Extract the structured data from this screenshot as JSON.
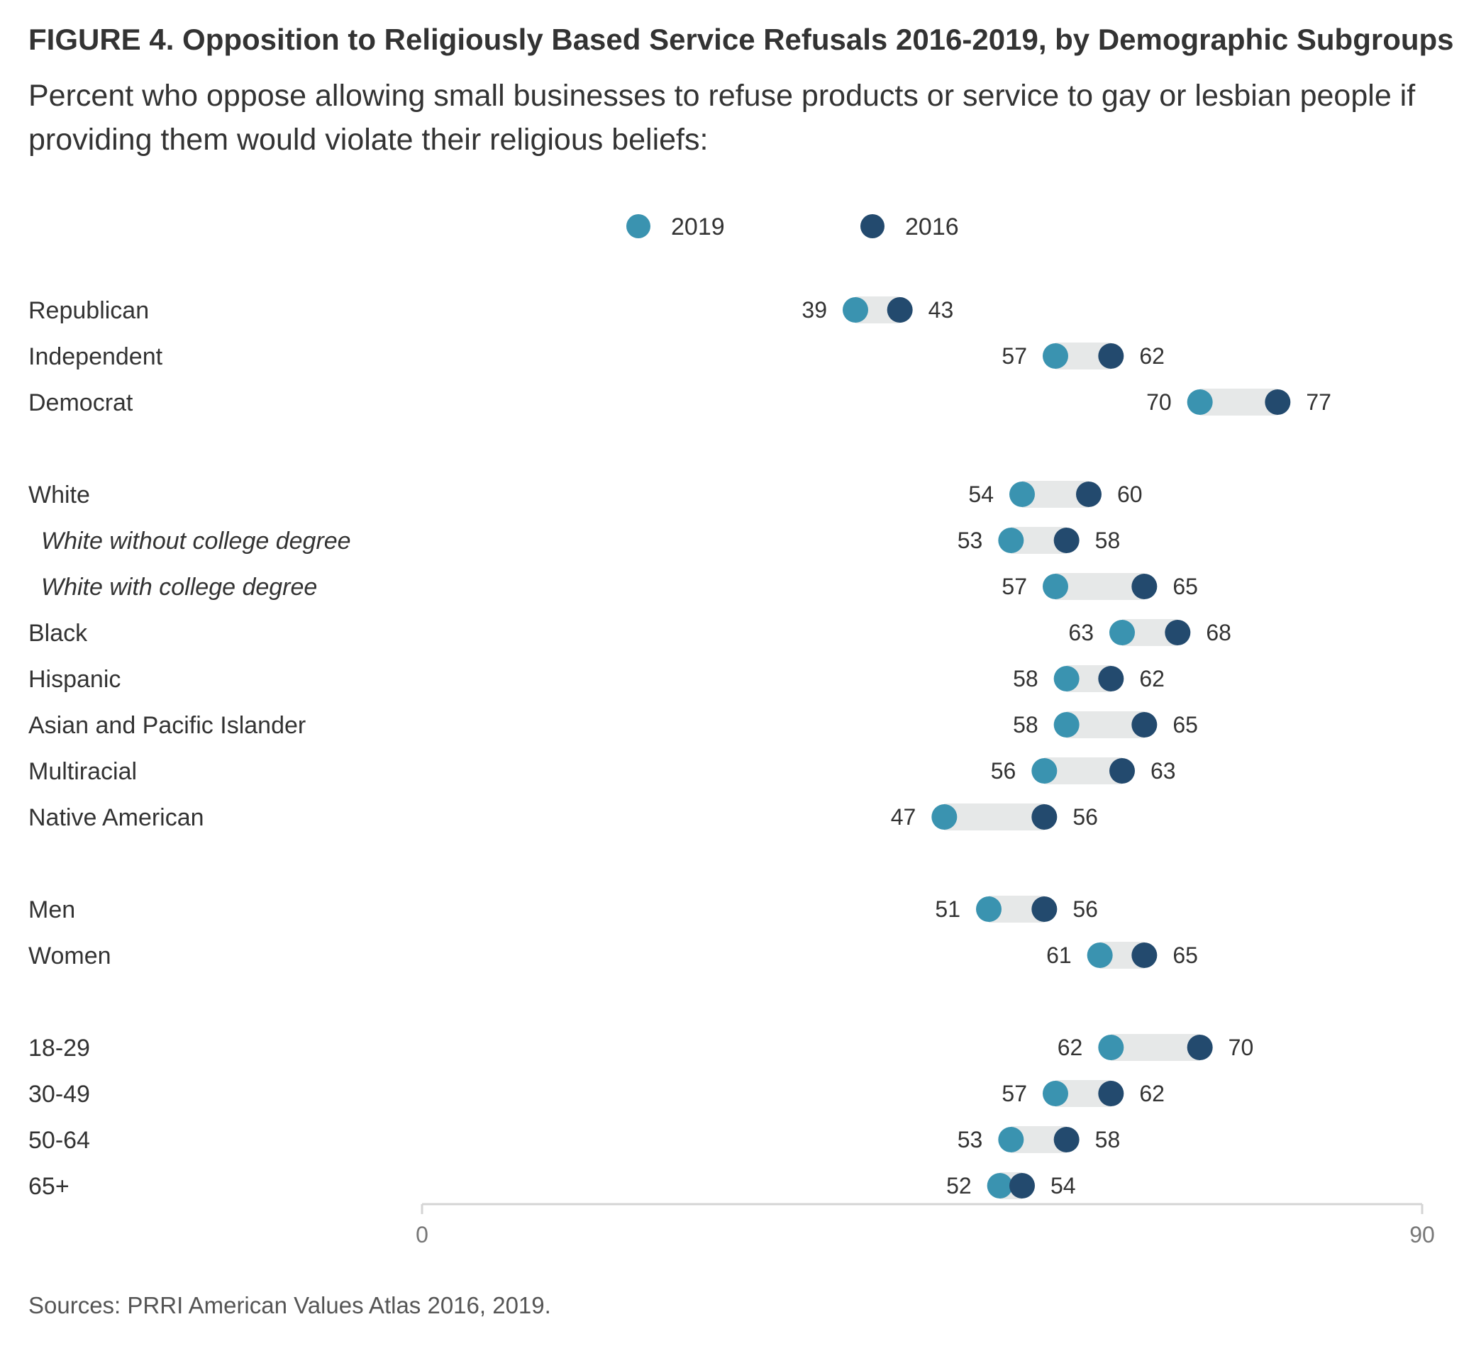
{
  "chart_data": {
    "type": "dumbbell",
    "title": "FIGURE 4. Opposition to Religiously Based Service Refusals 2016-2019, by Demographic Subgroups",
    "subtitle": "Percent who oppose allowing small businesses to refuse products or service to gay or lesbian people if providing them would violate their religious beliefs:",
    "source": "Sources: PRRI American Values Atlas 2016, 2019.",
    "xlim": [
      0,
      90
    ],
    "ticks": [
      "0",
      "90"
    ],
    "legend": {
      "placement": "top-center",
      "items": [
        {
          "name": "2019",
          "color": "#3a93b0"
        },
        {
          "name": "2016",
          "color": "#234a6e"
        }
      ]
    },
    "colors": {
      "2019": "#3a93b0",
      "2016": "#234a6e",
      "range_bar": "#e6e8e8",
      "axis": "#d4d4d4"
    },
    "groups": [
      {
        "rows": [
          {
            "label": "Republican",
            "italic": false,
            "v2019": 39,
            "v2016": 43
          },
          {
            "label": "Independent",
            "italic": false,
            "v2019": 57,
            "v2016": 62
          },
          {
            "label": "Democrat",
            "italic": false,
            "v2019": 70,
            "v2016": 77
          }
        ]
      },
      {
        "rows": [
          {
            "label": "White",
            "italic": false,
            "v2019": 54,
            "v2016": 60
          },
          {
            "label": "White without college degree",
            "italic": true,
            "v2019": 53,
            "v2016": 58
          },
          {
            "label": "White with college degree",
            "italic": true,
            "v2019": 57,
            "v2016": 65
          },
          {
            "label": "Black",
            "italic": false,
            "v2019": 63,
            "v2016": 68
          },
          {
            "label": "Hispanic",
            "italic": false,
            "v2019": 58,
            "v2016": 62
          },
          {
            "label": "Asian and Pacific Islander",
            "italic": false,
            "v2019": 58,
            "v2016": 65
          },
          {
            "label": "Multiracial",
            "italic": false,
            "v2019": 56,
            "v2016": 63
          },
          {
            "label": "Native American",
            "italic": false,
            "v2019": 47,
            "v2016": 56
          }
        ]
      },
      {
        "rows": [
          {
            "label": "Men",
            "italic": false,
            "v2019": 51,
            "v2016": 56
          },
          {
            "label": "Women",
            "italic": false,
            "v2019": 61,
            "v2016": 65
          }
        ]
      },
      {
        "rows": [
          {
            "label": "18-29",
            "italic": false,
            "v2019": 62,
            "v2016": 70
          },
          {
            "label": "30-49",
            "italic": false,
            "v2019": 57,
            "v2016": 62
          },
          {
            "label": "50-64",
            "italic": false,
            "v2019": 53,
            "v2016": 58
          },
          {
            "label": "65+",
            "italic": false,
            "v2019": 52,
            "v2016": 54
          }
        ]
      }
    ]
  }
}
